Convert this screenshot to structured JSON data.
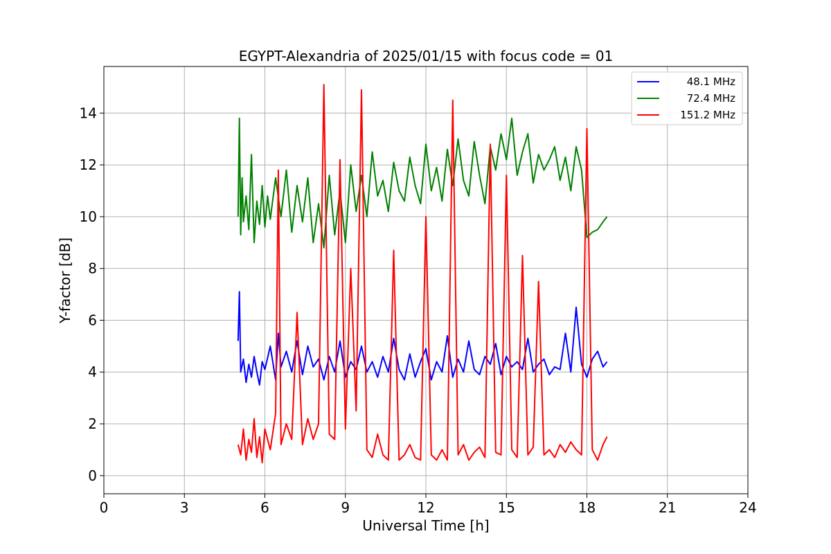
{
  "chart_data": {
    "type": "line",
    "title": "EGYPT-Alexandria of 2025/01/15 with focus code = 01",
    "xlabel": "Universal Time [h]",
    "ylabel": "Y-factor [dB]",
    "xlim": [
      0,
      24
    ],
    "ylim": [
      -0.7,
      15.8
    ],
    "xticks": [
      0,
      3,
      6,
      9,
      12,
      15,
      18,
      21,
      24
    ],
    "yticks": [
      0,
      2,
      4,
      6,
      8,
      10,
      12,
      14
    ],
    "grid": true,
    "legend_position": "top-right",
    "series": [
      {
        "name": "48.1 MHz",
        "color": "#0000ff",
        "x": [
          5.0,
          5.05,
          5.1,
          5.2,
          5.3,
          5.4,
          5.5,
          5.6,
          5.7,
          5.8,
          5.9,
          6.0,
          6.2,
          6.4,
          6.5,
          6.6,
          6.8,
          7.0,
          7.2,
          7.4,
          7.6,
          7.8,
          8.0,
          8.2,
          8.4,
          8.6,
          8.8,
          9.0,
          9.2,
          9.4,
          9.6,
          9.8,
          10.0,
          10.2,
          10.4,
          10.6,
          10.8,
          11.0,
          11.2,
          11.4,
          11.6,
          11.8,
          12.0,
          12.2,
          12.4,
          12.6,
          12.8,
          13.0,
          13.2,
          13.4,
          13.6,
          13.8,
          14.0,
          14.2,
          14.4,
          14.6,
          14.8,
          15.0,
          15.2,
          15.4,
          15.6,
          15.8,
          16.0,
          16.2,
          16.4,
          16.6,
          16.8,
          17.0,
          17.2,
          17.4,
          17.6,
          17.8,
          18.0,
          18.2,
          18.4,
          18.6,
          18.75
        ],
        "y": [
          5.2,
          7.1,
          4.0,
          4.5,
          3.6,
          4.3,
          3.8,
          4.6,
          4.0,
          3.5,
          4.4,
          4.1,
          5.0,
          3.7,
          5.5,
          4.2,
          4.8,
          4.0,
          5.2,
          3.9,
          5.0,
          4.2,
          4.5,
          3.7,
          4.6,
          4.0,
          5.2,
          3.8,
          4.4,
          4.1,
          5.0,
          4.0,
          4.4,
          3.8,
          4.6,
          4.0,
          5.3,
          4.1,
          3.7,
          4.7,
          3.8,
          4.4,
          4.9,
          3.7,
          4.4,
          4.0,
          5.4,
          3.8,
          4.5,
          4.0,
          5.2,
          4.1,
          3.9,
          4.6,
          4.3,
          5.1,
          3.9,
          4.6,
          4.2,
          4.4,
          4.1,
          5.3,
          4.0,
          4.3,
          4.5,
          3.9,
          4.2,
          4.1,
          5.5,
          4.0,
          6.5,
          4.3,
          3.8,
          4.5,
          4.8,
          4.2,
          4.4
        ]
      },
      {
        "name": "72.4 MHz",
        "color": "#008000",
        "x": [
          5.0,
          5.05,
          5.1,
          5.15,
          5.2,
          5.3,
          5.4,
          5.5,
          5.6,
          5.7,
          5.8,
          5.9,
          6.0,
          6.1,
          6.2,
          6.4,
          6.6,
          6.8,
          7.0,
          7.2,
          7.4,
          7.6,
          7.8,
          8.0,
          8.2,
          8.4,
          8.6,
          8.8,
          9.0,
          9.2,
          9.4,
          9.6,
          9.8,
          10.0,
          10.2,
          10.4,
          10.6,
          10.8,
          11.0,
          11.2,
          11.4,
          11.6,
          11.8,
          12.0,
          12.2,
          12.4,
          12.6,
          12.8,
          13.0,
          13.2,
          13.4,
          13.6,
          13.8,
          14.0,
          14.2,
          14.4,
          14.6,
          14.8,
          15.0,
          15.2,
          15.4,
          15.6,
          15.8,
          16.0,
          16.2,
          16.4,
          16.6,
          16.8,
          17.0,
          17.2,
          17.4,
          17.6,
          17.8,
          18.0,
          18.2,
          18.4,
          18.6,
          18.75
        ],
        "y": [
          10.0,
          13.8,
          9.3,
          11.5,
          9.8,
          10.8,
          9.5,
          12.4,
          9.0,
          10.6,
          9.7,
          11.2,
          9.6,
          10.8,
          9.9,
          11.5,
          10.0,
          11.8,
          9.4,
          11.2,
          9.8,
          11.5,
          9.0,
          10.5,
          8.8,
          11.6,
          9.3,
          11.0,
          9.0,
          12.0,
          10.2,
          11.6,
          10.0,
          12.5,
          10.8,
          11.4,
          10.2,
          12.1,
          11.0,
          10.6,
          12.3,
          11.2,
          10.5,
          12.8,
          11.0,
          11.9,
          10.6,
          12.6,
          11.2,
          13.0,
          11.4,
          10.8,
          12.9,
          11.6,
          10.5,
          12.7,
          11.8,
          13.2,
          12.2,
          13.8,
          11.6,
          12.5,
          13.2,
          11.3,
          12.4,
          11.8,
          12.2,
          12.7,
          11.4,
          12.3,
          11.0,
          12.7,
          11.8,
          9.2,
          9.4,
          9.5,
          9.8,
          10.0
        ]
      },
      {
        "name": "151.2 MHz",
        "color": "#ff0000",
        "x": [
          5.0,
          5.1,
          5.2,
          5.3,
          5.4,
          5.5,
          5.6,
          5.7,
          5.8,
          5.9,
          6.0,
          6.2,
          6.4,
          6.5,
          6.6,
          6.8,
          7.0,
          7.2,
          7.4,
          7.6,
          7.8,
          8.0,
          8.2,
          8.4,
          8.6,
          8.8,
          9.0,
          9.2,
          9.4,
          9.6,
          9.8,
          10.0,
          10.2,
          10.4,
          10.6,
          10.8,
          11.0,
          11.2,
          11.4,
          11.6,
          11.8,
          12.0,
          12.2,
          12.4,
          12.6,
          12.8,
          13.0,
          13.2,
          13.4,
          13.6,
          13.8,
          14.0,
          14.2,
          14.4,
          14.6,
          14.8,
          15.0,
          15.2,
          15.4,
          15.6,
          15.8,
          16.0,
          16.2,
          16.4,
          16.6,
          16.8,
          17.0,
          17.2,
          17.4,
          17.6,
          17.8,
          18.0,
          18.2,
          18.4,
          18.6,
          18.75
        ],
        "y": [
          1.2,
          0.8,
          1.8,
          0.6,
          1.4,
          0.9,
          2.2,
          0.7,
          1.5,
          0.5,
          1.8,
          1.0,
          2.4,
          11.8,
          1.2,
          2.0,
          1.4,
          6.3,
          1.2,
          2.2,
          1.4,
          2.0,
          15.1,
          1.6,
          1.4,
          12.2,
          1.8,
          8.0,
          2.5,
          14.9,
          1.0,
          0.7,
          1.6,
          0.8,
          0.6,
          8.7,
          0.6,
          0.8,
          1.2,
          0.7,
          0.6,
          10.0,
          0.8,
          0.6,
          1.0,
          0.6,
          14.5,
          0.8,
          1.2,
          0.6,
          0.9,
          1.1,
          0.7,
          12.8,
          0.9,
          0.8,
          11.6,
          1.0,
          0.7,
          8.5,
          0.8,
          1.1,
          7.5,
          0.8,
          1.0,
          0.7,
          1.2,
          0.9,
          1.3,
          1.0,
          0.8,
          13.4,
          1.0,
          0.6,
          1.2,
          1.5
        ]
      }
    ]
  }
}
